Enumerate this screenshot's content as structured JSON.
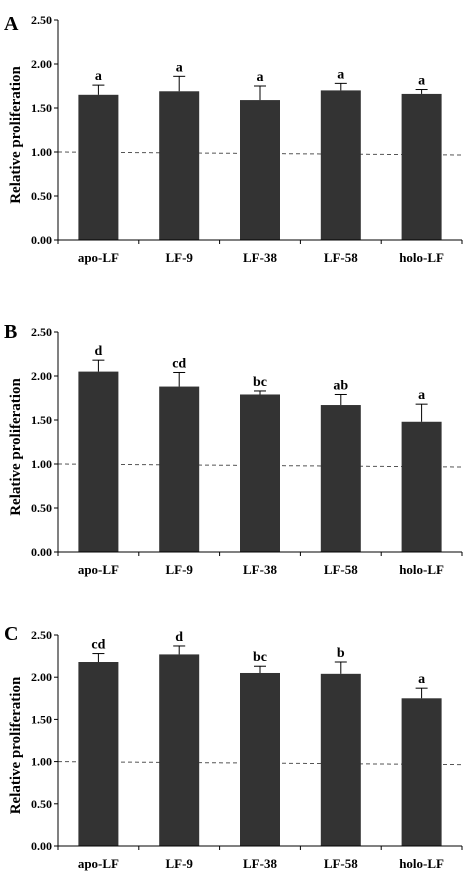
{
  "style": {
    "bar_color": "#333333",
    "axis_color": "#000000",
    "reference_line_color": "#555555"
  },
  "chart_data": [
    {
      "type": "bar",
      "panel_label": "A",
      "ylabel": "Relative proliferation",
      "categories": [
        "apo-LF",
        "LF-9",
        "LF-38",
        "LF-58",
        "holo-LF"
      ],
      "values": [
        1.65,
        1.69,
        1.59,
        1.7,
        1.66
      ],
      "errors": [
        0.11,
        0.17,
        0.16,
        0.08,
        0.05
      ],
      "significance_letters": [
        "a",
        "a",
        "a",
        "a",
        "a"
      ],
      "yticks": [
        "0.00",
        "0.50",
        "1.00",
        "1.50",
        "2.00",
        "2.50"
      ],
      "ylim": [
        0,
        2.5
      ],
      "reference_line": 1.0,
      "grid": false
    },
    {
      "type": "bar",
      "panel_label": "B",
      "ylabel": "Relative proliferation",
      "categories": [
        "apo-LF",
        "LF-9",
        "LF-38",
        "LF-58",
        "holo-LF"
      ],
      "values": [
        2.05,
        1.88,
        1.79,
        1.67,
        1.48
      ],
      "errors": [
        0.13,
        0.16,
        0.04,
        0.12,
        0.2
      ],
      "significance_letters": [
        "d",
        "cd",
        "bc",
        "ab",
        "a"
      ],
      "yticks": [
        "0.00",
        "0.50",
        "1.00",
        "1.50",
        "2.00",
        "2.50"
      ],
      "ylim": [
        0,
        2.5
      ],
      "reference_line": 1.0,
      "grid": false
    },
    {
      "type": "bar",
      "panel_label": "C",
      "ylabel": "Relative proliferation",
      "categories": [
        "apo-LF",
        "LF-9",
        "LF-38",
        "LF-58",
        "holo-LF"
      ],
      "values": [
        2.18,
        2.27,
        2.05,
        2.04,
        1.75
      ],
      "errors": [
        0.1,
        0.1,
        0.08,
        0.14,
        0.12
      ],
      "significance_letters": [
        "cd",
        "d",
        "bc",
        "b",
        "a"
      ],
      "yticks": [
        "0.00",
        "0.50",
        "1.00",
        "1.50",
        "2.00",
        "2.50"
      ],
      "ylim": [
        0,
        2.5
      ],
      "reference_line": 1.0,
      "grid": false
    }
  ]
}
